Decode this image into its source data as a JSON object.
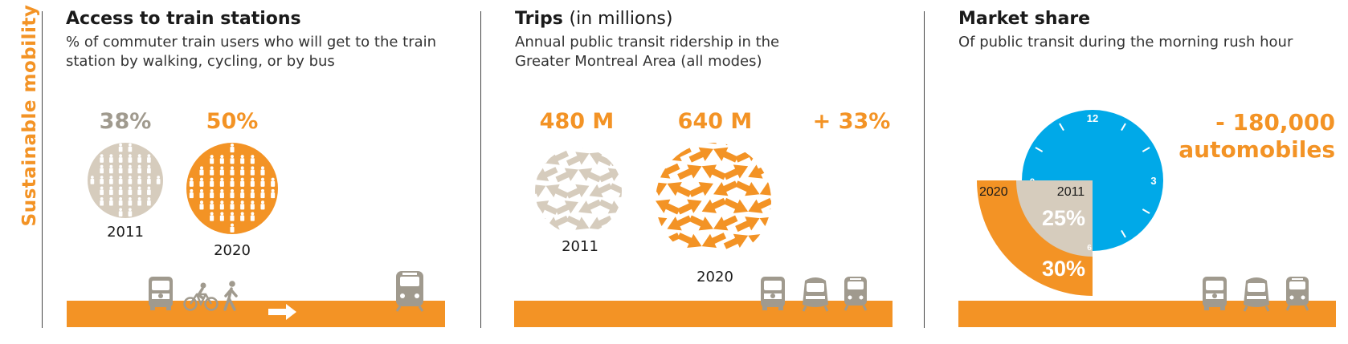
{
  "side_title": "Sustainable mobility",
  "colors": {
    "orange": "#f39325",
    "beige": "#d6ccbd",
    "grey": "#a09a8e",
    "blue": "#00a9e8",
    "dark": "#1a1a1a"
  },
  "panel1": {
    "title": "Access to train stations",
    "subtitle": "% of commuter train users who will get to the train station by walking, cycling, or by bus",
    "stat_2011": "38%",
    "stat_2020": "50%",
    "year_2011": "2011",
    "year_2020": "2020",
    "icons": [
      "bus-icon",
      "cyclist-icon",
      "pedestrian-icon",
      "arrow-right-icon",
      "train-icon"
    ]
  },
  "panel2": {
    "title": "Trips",
    "title_unit": "(in millions)",
    "subtitle": "Annual public transit ridership in the Greater Montreal Area (all modes)",
    "stat_2011": "480 M",
    "stat_2020": "640 M",
    "change": "+ 33%",
    "year_2011": "2011",
    "year_2020": "2020",
    "icons": [
      "bus-icon",
      "metro-icon",
      "train-icon"
    ]
  },
  "panel3": {
    "title": "Market share",
    "subtitle": "Of public transit during the morning rush hour",
    "clock_12": "12",
    "clock_3": "3",
    "clock_6": "6",
    "clock_9": "9",
    "label_2020": "2020",
    "label_2011": "2011",
    "share_2011": "25%",
    "share_2020": "30%",
    "cars_line1": "- 180,000",
    "cars_line2": "automobiles",
    "icons": [
      "bus-icon",
      "metro-icon",
      "train-icon"
    ]
  }
}
